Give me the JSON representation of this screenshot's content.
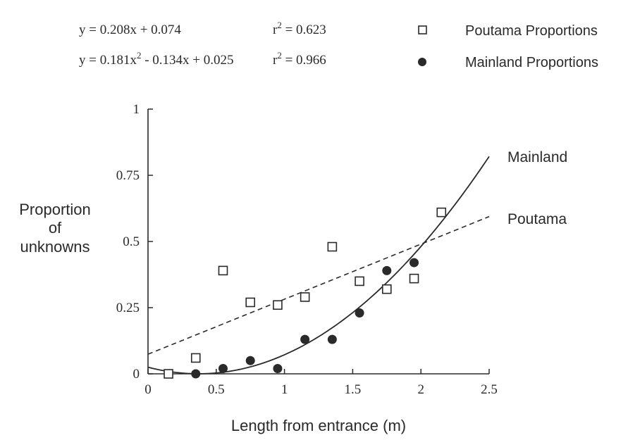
{
  "chart_data": {
    "type": "scatter",
    "xlabel": "Length from entrance (m)",
    "ylabel_lines": [
      "Proportion",
      "of",
      "unknowns"
    ],
    "xlim": [
      0,
      2.5
    ],
    "ylim": [
      0,
      1
    ],
    "x_ticks": [
      0,
      0.5,
      1,
      1.5,
      2,
      2.5
    ],
    "x_tick_labels": [
      "0",
      "0.5",
      "1",
      "1.5",
      "2",
      "2.5"
    ],
    "y_ticks": [
      0,
      0.25,
      0.5,
      0.75,
      1
    ],
    "y_tick_labels": [
      "0",
      "0.25",
      "0.5",
      "0.75",
      "1"
    ],
    "grid": false,
    "legend_position": "top-right",
    "equations": [
      {
        "text": "y = 0.208x + 0.074",
        "r2_prefix": "r",
        "r2_exp": "2",
        "r2_value": " = 0.623"
      },
      {
        "text_a": "y = 0.181x",
        "exp": "2",
        "text_b": " - 0.134x + 0.025",
        "r2_prefix": "r",
        "r2_exp": "2",
        "r2_value": " = 0.966"
      }
    ],
    "series": [
      {
        "name": "Poutama Proportions",
        "marker": "open-square",
        "fit_label": "Poutama",
        "fit_style": "dashed",
        "fit_coeffs": [
          0.074,
          0.208
        ],
        "x": [
          0.15,
          0.35,
          0.55,
          0.75,
          0.95,
          1.15,
          1.35,
          1.55,
          1.75,
          1.95,
          2.15
        ],
        "y": [
          0.0,
          0.06,
          0.39,
          0.27,
          0.26,
          0.29,
          0.48,
          0.35,
          0.32,
          0.36,
          0.61
        ]
      },
      {
        "name": "Mainland Proportions",
        "marker": "filled-circle",
        "fit_label": "Mainland",
        "fit_style": "solid",
        "fit_coeffs": [
          0.025,
          -0.134,
          0.181
        ],
        "x": [
          0.35,
          0.55,
          0.75,
          0.95,
          1.15,
          1.35,
          1.55,
          1.75,
          1.95
        ],
        "y": [
          0.0,
          0.02,
          0.05,
          0.02,
          0.13,
          0.13,
          0.23,
          0.39,
          0.42
        ]
      }
    ]
  }
}
